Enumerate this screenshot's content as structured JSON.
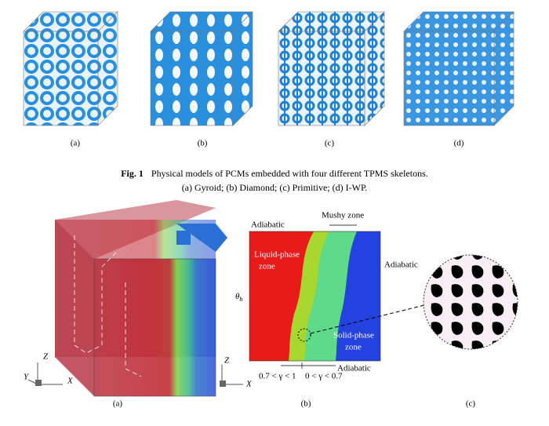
{
  "figure1": {
    "panels": [
      "(a)",
      "(b)",
      "(c)",
      "(d)"
    ],
    "caption": {
      "number": "Fig. 1",
      "text": "Physical models of PCMs embedded with four different TPMS skeletons.",
      "subtext": "(a) Gyroid; (b) Diamond; (c) Primitive; (d) I-WP."
    }
  },
  "figure2": {
    "adiabatic_top": "Adiabatic",
    "adiabatic_right": "Adiabatic",
    "adiabatic_bottom": "Adiabatic",
    "mushy_zone": "Mushy zone",
    "liquid_zone": [
      "Liquid-phase",
      "zone"
    ],
    "solid_zone": [
      "Solid-phase",
      "zone"
    ],
    "theta": "θ",
    "theta_sub": "h",
    "gamma_range_1": "0.7 < γ < 1",
    "gamma_range_2": "0 < γ < 0.7",
    "axes_left": {
      "z": "Z",
      "y": "Y",
      "x": "X"
    },
    "axes_right": {
      "z": "Z",
      "x": "X"
    },
    "panels": [
      "(a)",
      "(b)",
      "(c)"
    ]
  }
}
